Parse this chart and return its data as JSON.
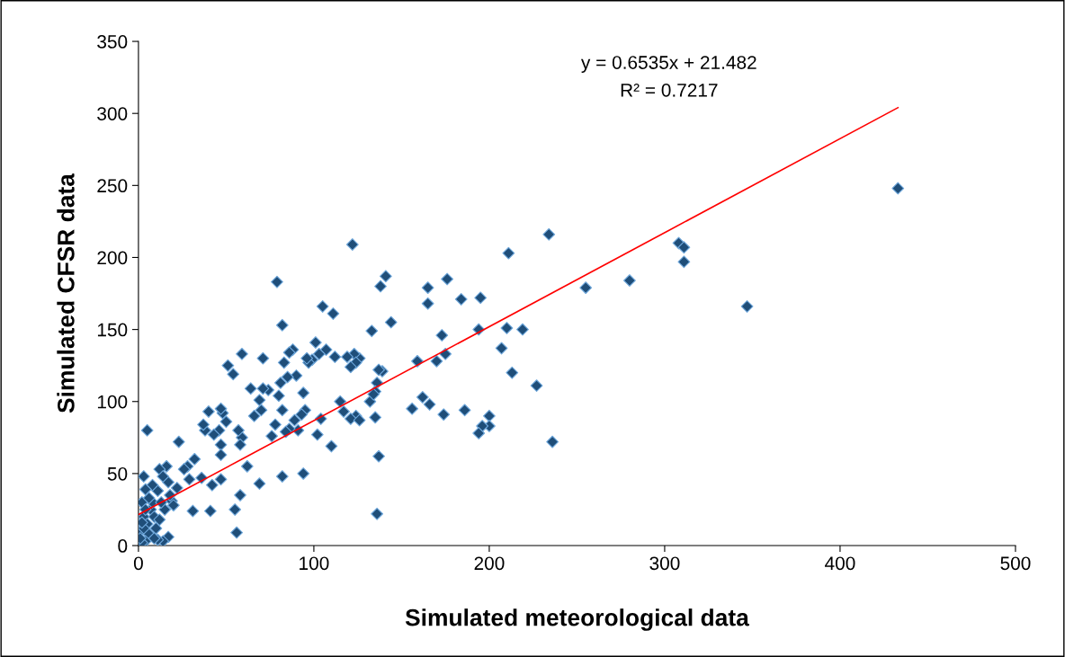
{
  "chart_data": {
    "type": "scatter",
    "xlabel": "Simulated meteorological data",
    "ylabel": "Simulated CFSR data",
    "xlim": [
      0,
      500
    ],
    "xticks": [
      0,
      100,
      200,
      300,
      400,
      500
    ],
    "ylim": [
      0,
      350
    ],
    "yticks": [
      0,
      50,
      100,
      150,
      200,
      250,
      300,
      350
    ],
    "grid": false,
    "legend": false,
    "annotations": [
      "y = 0.6535x + 21.482",
      "R² = 0.7217"
    ],
    "series": [
      {
        "color": "#1f4e79",
        "marker": "diamond",
        "x": [
          433,
          308,
          311,
          311,
          347,
          280,
          255,
          234,
          236,
          227,
          213,
          219,
          210,
          207,
          211,
          195,
          194,
          200,
          200,
          196,
          194,
          186,
          176,
          175,
          173,
          170,
          165,
          165,
          166,
          162,
          174,
          156,
          159,
          184,
          138,
          141,
          139,
          137,
          144,
          136,
          135,
          132,
          134,
          135,
          137,
          136,
          133,
          126,
          123,
          124,
          121,
          122,
          124,
          121,
          126,
          119,
          117,
          115,
          112,
          111,
          110,
          107,
          105,
          104,
          102,
          101,
          103,
          99,
          97,
          96,
          95,
          93,
          94,
          94,
          91,
          89,
          88,
          86,
          90,
          85,
          86,
          84,
          82,
          82,
          79,
          81,
          83,
          80,
          82,
          76,
          78,
          74,
          71,
          71,
          69,
          69,
          70,
          66,
          64,
          62,
          59,
          59,
          58,
          57,
          58,
          56,
          55,
          54,
          51,
          50,
          48,
          47,
          46,
          47,
          47,
          47,
          43,
          40,
          38,
          37,
          41,
          42,
          36,
          32,
          31,
          29,
          28,
          26,
          23,
          22,
          19,
          17,
          16,
          12,
          14,
          11,
          8,
          5,
          3,
          4,
          2,
          1,
          3,
          5,
          7,
          9,
          6,
          4,
          2,
          1,
          10,
          12,
          15,
          17,
          14,
          11,
          8,
          6,
          3,
          18,
          20,
          13,
          9,
          2,
          4
        ],
        "values": [
          248,
          210,
          207,
          197,
          166,
          184,
          179,
          216,
          72,
          111,
          120,
          150,
          151,
          137,
          203,
          172,
          150,
          90,
          83,
          83,
          78,
          94,
          185,
          133,
          146,
          128,
          179,
          168,
          98,
          103,
          91,
          95,
          128,
          171,
          180,
          187,
          121,
          122,
          155,
          113,
          107,
          100,
          105,
          89,
          62,
          22,
          149,
          130,
          133,
          127,
          124,
          209,
          90,
          88,
          87,
          131,
          93,
          100,
          131,
          161,
          69,
          136,
          166,
          88,
          77,
          141,
          133,
          129,
          127,
          130,
          94,
          91,
          106,
          50,
          80,
          87,
          136,
          134,
          118,
          117,
          81,
          79,
          94,
          153,
          183,
          113,
          127,
          104,
          48,
          76,
          84,
          108,
          109,
          130,
          101,
          43,
          94,
          90,
          109,
          55,
          133,
          75,
          70,
          80,
          35,
          9,
          25,
          119,
          125,
          86,
          92,
          95,
          80,
          70,
          63,
          46,
          77,
          93,
          80,
          84,
          24,
          42,
          47,
          60,
          24,
          46,
          55,
          53,
          72,
          40,
          31,
          44,
          55,
          53,
          48,
          38,
          42,
          80,
          48,
          39,
          30,
          10,
          20,
          15,
          25,
          20,
          8,
          3,
          2,
          5,
          12,
          18,
          25,
          6,
          3,
          4,
          30,
          33,
          12,
          35,
          28,
          30,
          5,
          16,
          25
        ]
      },
      {
        "type": "line",
        "color": "#ff0000",
        "marker": "none",
        "x": [
          0,
          433
        ],
        "values": [
          21.5,
          304
        ]
      }
    ]
  }
}
